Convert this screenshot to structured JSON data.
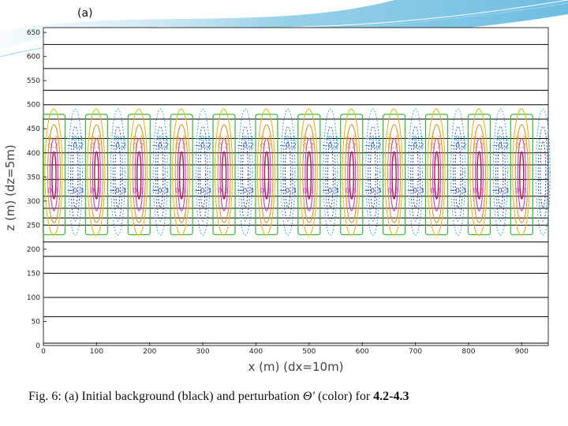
{
  "panel_label": "(a)",
  "caption": {
    "prefix": "Fig. 6: (a) Initial background (black) and perturbation ",
    "symbol": "Θ′",
    "middle": " (color) for ",
    "bold": "4.2-4.3"
  },
  "colors": {
    "background_lines": "#000000",
    "contour_0_1": "#e8b818",
    "contour_minus_0_1": "#38a8e8",
    "contour_0_2": "#e89028",
    "contour_minus_0_2": "#2868c8",
    "contour_0_3": "#c838c8",
    "contour_minus_0_3": "#2840b8",
    "contour_outer": "#38b838",
    "contour_core": "#c01848"
  },
  "chart_data": {
    "type": "contour",
    "xlabel": "x (m) (dx=10m)",
    "ylabel": "z (m) (dz=5m)",
    "xlim": [
      0,
      950
    ],
    "ylim": [
      0,
      660
    ],
    "xticks": [
      0,
      100,
      200,
      300,
      400,
      500,
      600,
      700,
      800,
      900
    ],
    "yticks": [
      0,
      50,
      100,
      150,
      200,
      250,
      300,
      350,
      400,
      450,
      500,
      550,
      600,
      650
    ],
    "background_isolines_z": [
      5,
      60,
      100,
      150,
      185,
      215,
      250,
      265,
      285,
      310,
      345,
      375,
      400,
      430,
      470,
      500,
      530,
      575,
      625,
      670
    ],
    "perturbation": {
      "cell_centers_x": [
        20,
        100,
        180,
        260,
        340,
        420,
        500,
        580,
        660,
        740,
        820,
        900
      ],
      "center_z": 360,
      "outer_contour_z_range": [
        230,
        480
      ],
      "contour_levels": [
        0.1,
        -0.1,
        0.2,
        -0.2,
        0.3,
        -0.3
      ],
      "label_rows": [
        {
          "z": 430,
          "labels": [
            "0.1",
            "-0.1"
          ]
        },
        {
          "z": 415,
          "labels": [
            "0.2",
            "-0.2"
          ]
        },
        {
          "z": 322,
          "labels": [
            "0.3",
            "-0.3"
          ]
        }
      ]
    }
  }
}
